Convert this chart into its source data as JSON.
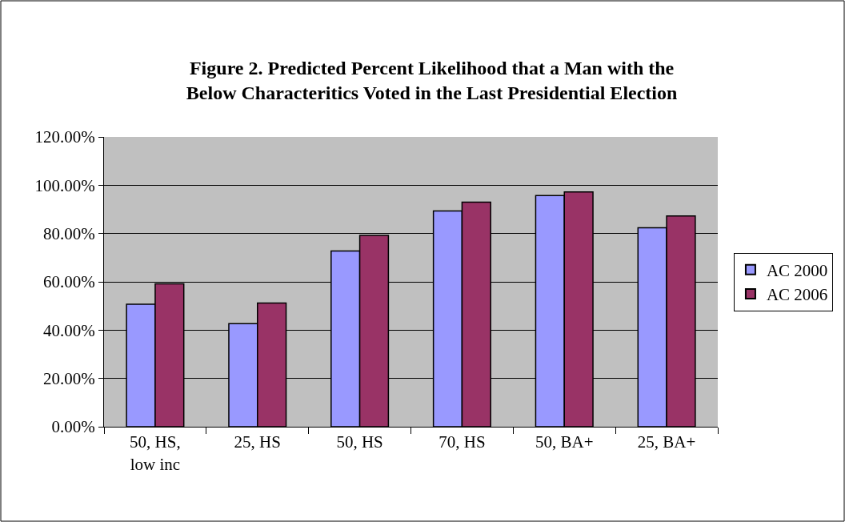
{
  "chart_data": {
    "type": "bar",
    "title": "Figure 2. Predicted Percent Likelihood that a Man with the Below Characteritics Voted in the Last Presidential Election",
    "categories": [
      "50, HS, low inc",
      "25, HS",
      "50, HS",
      "70, HS",
      "50, BA+",
      "25, BA+"
    ],
    "series": [
      {
        "name": "AC 2000",
        "color": "#9999ff",
        "values": [
          50.7,
          42.7,
          72.8,
          89.3,
          95.7,
          82.4
        ]
      },
      {
        "name": "AC 2006",
        "color": "#993366",
        "values": [
          59.2,
          51.2,
          79.2,
          93.0,
          97.2,
          87.3
        ]
      }
    ],
    "ylim": [
      0,
      120
    ],
    "yticks": [
      {
        "value": 0,
        "label": "0.00%"
      },
      {
        "value": 20,
        "label": "20.00%"
      },
      {
        "value": 40,
        "label": "40.00%"
      },
      {
        "value": 60,
        "label": "60.00%"
      },
      {
        "value": 80,
        "label": "80.00%"
      },
      {
        "value": 100,
        "label": "100.00%"
      },
      {
        "value": 120,
        "label": "120.00%"
      }
    ],
    "grid": "y",
    "legend": "right"
  }
}
